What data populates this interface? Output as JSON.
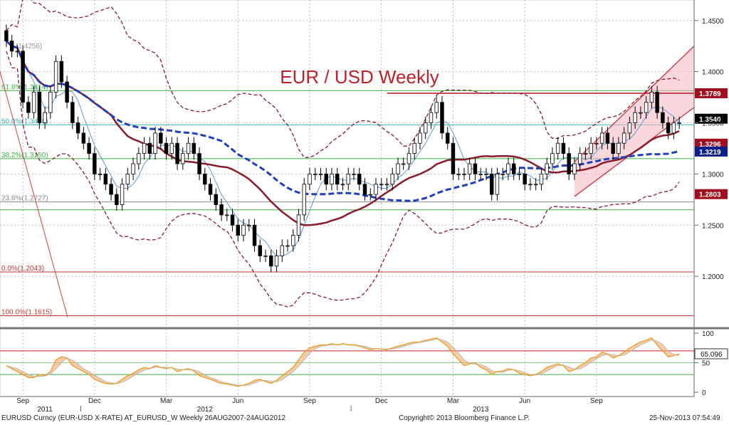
{
  "footer": {
    "ticker": "EURUSD Curncy (EUR-USD X-RATE) AT_EURUSD_W  Weekly 26AUG2007-24AUG2012",
    "copyright": "Copyright© 2013 Bloomberg Finance L.P.",
    "timestamp": "25-Nov-2013 07:54:49"
  },
  "chart_data": [
    {
      "type": "candlestick",
      "title": "EUR / USD Weekly",
      "ylim": [
        1.15,
        1.47
      ],
      "y_ticks": [
        "1.4500",
        "1.4000",
        "1.3500",
        "1.3000",
        "1.2500",
        "1.2000"
      ],
      "x_ticks": [
        "Sep",
        "Dec",
        "Mar",
        "Jun",
        "Sep",
        "Dec",
        "Mar",
        "Jun",
        "Sep"
      ],
      "year_labels": [
        "2011",
        "2012",
        "2013"
      ],
      "price_tags": [
        {
          "label": "1.3789",
          "value": 1.3789,
          "color": "#a00d1c"
        },
        {
          "label": "1.3540",
          "value": 1.354,
          "color": "#000000"
        },
        {
          "label": "1.3296",
          "value": 1.3296,
          "color": "#a00d1c"
        },
        {
          "label": "1.3219",
          "value": 1.3219,
          "color": "#0a1f8c"
        },
        {
          "label": "1.2803",
          "value": 1.2803,
          "color": "#a00d1c"
        }
      ],
      "fibonacci": [
        {
          "label": "61.8%(1.3814)",
          "value": 1.3814,
          "color": "#3cb043"
        },
        {
          "label": "50.0%(1.3480)",
          "value": 1.348,
          "color": "#38b2b4"
        },
        {
          "label": "38.2%(1.3150)",
          "value": 1.315,
          "color": "#3cb043"
        },
        {
          "label": "23.6%(1.2727)",
          "value": 1.2727,
          "color": "#888888"
        },
        {
          "label": "0.0%(1.2043)",
          "value": 1.2043,
          "color": "#c0392b"
        },
        {
          "label": "100.0%(1.1615)",
          "value": 1.1615,
          "color": "#c0392b"
        }
      ],
      "top_fib_label": "(1.4256)",
      "series": [
        {
          "name": "EURUSD weekly candles",
          "values": [
            1.43,
            1.42,
            1.42,
            1.37,
            1.36,
            1.38,
            1.35,
            1.36,
            1.38,
            1.41,
            1.39,
            1.37,
            1.35,
            1.34,
            1.33,
            1.32,
            1.3,
            1.3,
            1.29,
            1.28,
            1.27,
            1.29,
            1.3,
            1.31,
            1.32,
            1.33,
            1.32,
            1.34,
            1.33,
            1.32,
            1.33,
            1.31,
            1.32,
            1.33,
            1.32,
            1.3,
            1.29,
            1.28,
            1.27,
            1.26,
            1.26,
            1.25,
            1.24,
            1.25,
            1.25,
            1.23,
            1.22,
            1.22,
            1.21,
            1.22,
            1.23,
            1.23,
            1.24,
            1.26,
            1.29,
            1.3,
            1.3,
            1.3,
            1.29,
            1.3,
            1.29,
            1.29,
            1.3,
            1.3,
            1.29,
            1.28,
            1.28,
            1.29,
            1.29,
            1.29,
            1.3,
            1.31,
            1.31,
            1.32,
            1.33,
            1.34,
            1.35,
            1.36,
            1.37,
            1.34,
            1.33,
            1.3,
            1.3,
            1.3,
            1.31,
            1.3,
            1.3,
            1.3,
            1.28,
            1.3,
            1.3,
            1.31,
            1.3,
            1.3,
            1.29,
            1.29,
            1.29,
            1.3,
            1.31,
            1.32,
            1.33,
            1.32,
            1.3,
            1.31,
            1.32,
            1.32,
            1.33,
            1.33,
            1.34,
            1.33,
            1.32,
            1.33,
            1.34,
            1.35,
            1.36,
            1.36,
            1.37,
            1.38,
            1.36,
            1.35,
            1.34,
            1.35,
            1.35
          ]
        }
      ]
    },
    {
      "type": "line",
      "title": "",
      "ylim": [
        0,
        100
      ],
      "y_ticks": [
        "100",
        "50",
        "0"
      ],
      "last_value_label": "65.096",
      "values": [
        45,
        40,
        35,
        30,
        25,
        25,
        30,
        28,
        35,
        55,
        60,
        58,
        45,
        40,
        35,
        30,
        22,
        18,
        15,
        14,
        15,
        22,
        28,
        32,
        38,
        42,
        40,
        45,
        42,
        40,
        42,
        35,
        38,
        40,
        36,
        28,
        25,
        22,
        18,
        15,
        14,
        12,
        10,
        12,
        15,
        20,
        22,
        18,
        15,
        20,
        28,
        35,
        42,
        55,
        68,
        75,
        78,
        80,
        80,
        82,
        80,
        82,
        80,
        80,
        78,
        75,
        72,
        74,
        73,
        72,
        75,
        78,
        80,
        83,
        85,
        85,
        88,
        90,
        92,
        85,
        78,
        65,
        55,
        45,
        48,
        50,
        42,
        38,
        30,
        35,
        36,
        40,
        38,
        32,
        30,
        28,
        30,
        35,
        42,
        45,
        48,
        45,
        35,
        38,
        45,
        50,
        58,
        60,
        68,
        65,
        58,
        62,
        68,
        75,
        80,
        85,
        88,
        92,
        80,
        70,
        60,
        62,
        65
      ]
    }
  ]
}
